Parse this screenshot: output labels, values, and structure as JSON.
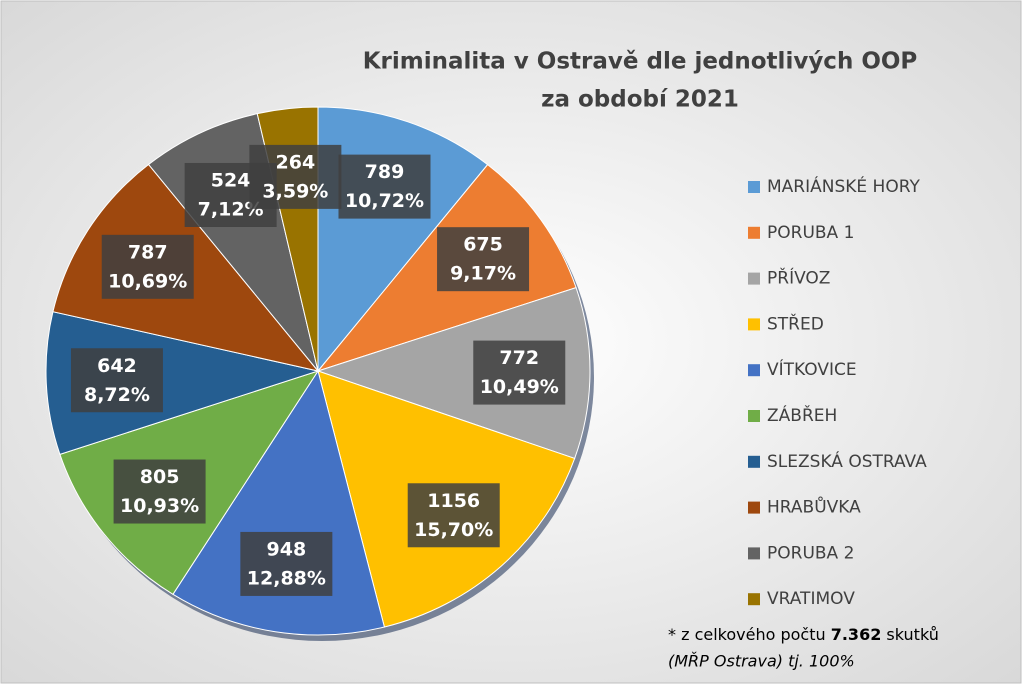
{
  "chart_data": {
    "type": "pie",
    "title": [
      "Kriminalita v Ostravě dle jednotlivých OOP",
      "za období 2021"
    ],
    "categories": [
      "MARIÁNSKÉ HORY",
      "PORUBA 1",
      "PŘÍVOZ",
      "STŘED",
      "VÍTKOVICE",
      "ZÁBŘEH",
      "SLEZSKÁ OSTRAVA",
      "HRABŮVKA",
      "PORUBA 2",
      "VRATIMOV"
    ],
    "values": [
      789,
      675,
      772,
      1156,
      948,
      805,
      642,
      787,
      524,
      264
    ],
    "percentages": [
      10.72,
      9.17,
      10.49,
      15.7,
      12.88,
      10.93,
      8.72,
      10.69,
      7.12,
      3.59
    ],
    "percentage_labels": [
      "10,72%",
      "9,17%",
      "10,49%",
      "15,70%",
      "12,88%",
      "10,93%",
      "8,72%",
      "10,69%",
      "7,12%",
      "3,59%"
    ],
    "colors": [
      "#5b9bd5",
      "#ed7d31",
      "#a5a5a5",
      "#ffc000",
      "#4472c4",
      "#70ad47",
      "#255e91",
      "#9e480e",
      "#636363",
      "#997300"
    ],
    "legend": "right",
    "footnote": {
      "prefix": "* z celkového počtu",
      "total": "7.362",
      "suffix": "skutků",
      "line2": "(MŘP Ostrava) tj. 100%"
    }
  }
}
